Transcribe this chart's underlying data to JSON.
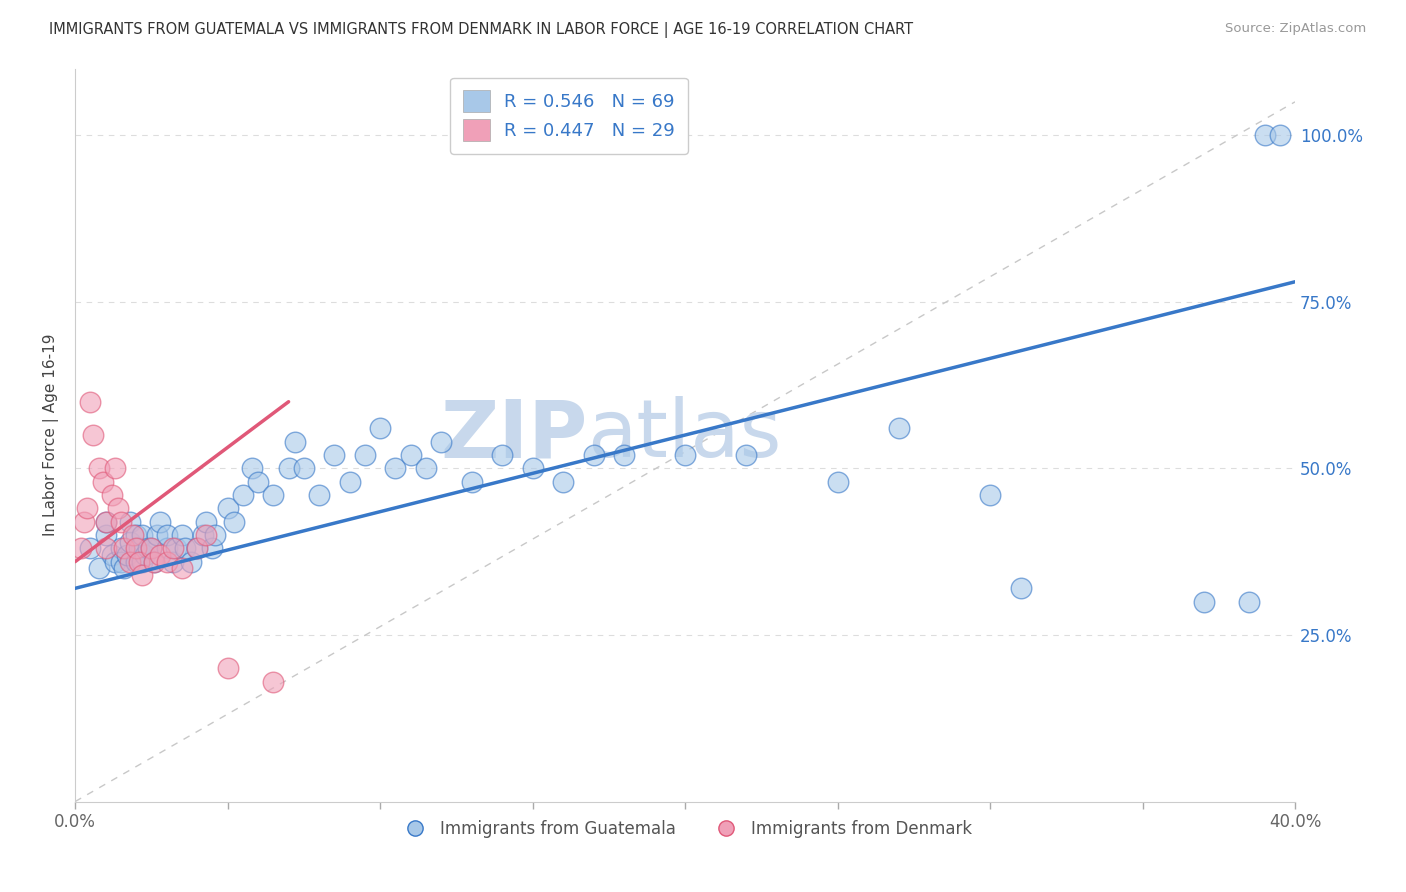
{
  "title": "IMMIGRANTS FROM GUATEMALA VS IMMIGRANTS FROM DENMARK IN LABOR FORCE | AGE 16-19 CORRELATION CHART",
  "source": "Source: ZipAtlas.com",
  "ylabel": "In Labor Force | Age 16-19",
  "legend_label_blue": "Immigrants from Guatemala",
  "legend_label_pink": "Immigrants from Denmark",
  "R_blue": 0.546,
  "N_blue": 69,
  "R_pink": 0.447,
  "N_pink": 29,
  "xlim": [
    0.0,
    0.4
  ],
  "ylim": [
    0.0,
    1.1
  ],
  "x_ticks": [
    0.0,
    0.05,
    0.1,
    0.15,
    0.2,
    0.25,
    0.3,
    0.35,
    0.4
  ],
  "y_ticks": [
    0.25,
    0.5,
    0.75,
    1.0
  ],
  "y_tick_labels": [
    "25.0%",
    "50.0%",
    "75.0%",
    "100.0%"
  ],
  "color_blue": "#A8C8E8",
  "color_pink": "#F0A0B8",
  "line_color_blue": "#3878C8",
  "line_color_pink": "#E05878",
  "watermark_zip": "ZIP",
  "watermark_atlas": "atlas",
  "watermark_color": "#C8D8EC",
  "background_color": "#FFFFFF",
  "blue_line_x0": 0.0,
  "blue_line_y0": 0.32,
  "blue_line_x1": 0.4,
  "blue_line_y1": 0.78,
  "pink_line_x0": 0.0,
  "pink_line_y0": 0.36,
  "pink_line_x1": 0.07,
  "pink_line_y1": 0.6,
  "diag_line_x0": 0.0,
  "diag_line_y0": 0.0,
  "diag_line_x1": 0.4,
  "diag_line_y1": 1.05,
  "scatter_blue_x": [
    0.005,
    0.008,
    0.01,
    0.01,
    0.012,
    0.013,
    0.015,
    0.015,
    0.016,
    0.017,
    0.018,
    0.018,
    0.02,
    0.02,
    0.021,
    0.022,
    0.022,
    0.023,
    0.024,
    0.025,
    0.026,
    0.027,
    0.028,
    0.03,
    0.03,
    0.032,
    0.033,
    0.035,
    0.036,
    0.038,
    0.04,
    0.042,
    0.043,
    0.045,
    0.046,
    0.05,
    0.052,
    0.055,
    0.058,
    0.06,
    0.065,
    0.07,
    0.072,
    0.075,
    0.08,
    0.085,
    0.09,
    0.095,
    0.1,
    0.105,
    0.11,
    0.115,
    0.12,
    0.13,
    0.14,
    0.15,
    0.16,
    0.17,
    0.18,
    0.2,
    0.22,
    0.25,
    0.27,
    0.3,
    0.31,
    0.37,
    0.385,
    0.39,
    0.395
  ],
  "scatter_blue_y": [
    0.38,
    0.35,
    0.4,
    0.42,
    0.37,
    0.36,
    0.38,
    0.36,
    0.35,
    0.37,
    0.39,
    0.42,
    0.36,
    0.4,
    0.38,
    0.36,
    0.4,
    0.37,
    0.38,
    0.38,
    0.36,
    0.4,
    0.42,
    0.38,
    0.4,
    0.36,
    0.38,
    0.4,
    0.38,
    0.36,
    0.38,
    0.4,
    0.42,
    0.38,
    0.4,
    0.44,
    0.42,
    0.46,
    0.5,
    0.48,
    0.46,
    0.5,
    0.54,
    0.5,
    0.46,
    0.52,
    0.48,
    0.52,
    0.56,
    0.5,
    0.52,
    0.5,
    0.54,
    0.48,
    0.52,
    0.5,
    0.48,
    0.52,
    0.52,
    0.52,
    0.52,
    0.48,
    0.56,
    0.46,
    0.32,
    0.3,
    0.3,
    1.0,
    1.0
  ],
  "scatter_pink_x": [
    0.002,
    0.003,
    0.004,
    0.005,
    0.006,
    0.008,
    0.009,
    0.01,
    0.01,
    0.012,
    0.013,
    0.014,
    0.015,
    0.016,
    0.018,
    0.019,
    0.02,
    0.021,
    0.022,
    0.025,
    0.026,
    0.028,
    0.03,
    0.032,
    0.035,
    0.04,
    0.043,
    0.05,
    0.065
  ],
  "scatter_pink_y": [
    0.38,
    0.42,
    0.44,
    0.6,
    0.55,
    0.5,
    0.48,
    0.42,
    0.38,
    0.46,
    0.5,
    0.44,
    0.42,
    0.38,
    0.36,
    0.4,
    0.38,
    0.36,
    0.34,
    0.38,
    0.36,
    0.37,
    0.36,
    0.38,
    0.35,
    0.38,
    0.4,
    0.2,
    0.18
  ]
}
